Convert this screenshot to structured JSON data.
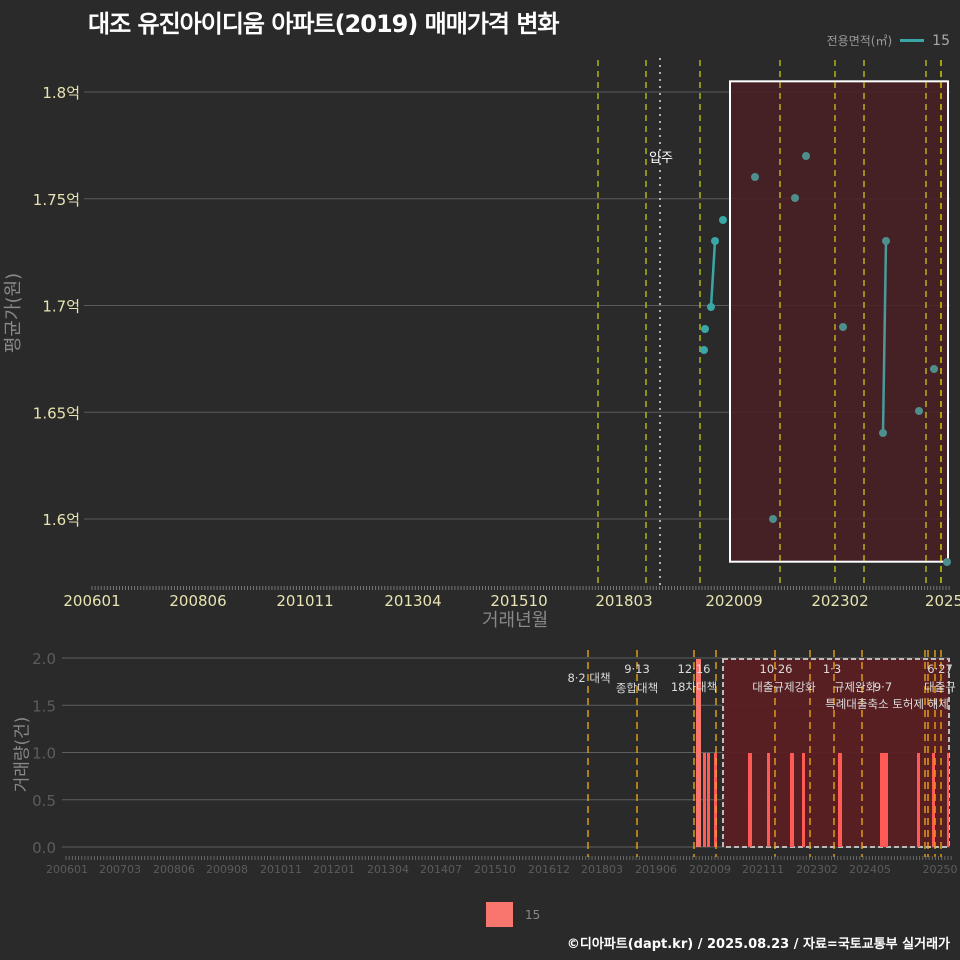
{
  "title": "대조 유진아이디움 아파트(2019) 매매가격 변화",
  "legend": {
    "title": "전용면적(㎡)",
    "series_label": "15",
    "line_color": "#3aa6a6",
    "bar_color": "#f8766d"
  },
  "caption": "©디아파트(dapt.kr) / 2025.08.23 / 자료=국토교통부 실거래가",
  "chart_data": [
    {
      "type": "line",
      "title": "대조 유진아이디움 아파트(2019) 매매가격 변화",
      "xlabel": "거래년월",
      "ylabel": "평균가(원)",
      "x_tick_labels": [
        "200601",
        "200806",
        "201011",
        "201304",
        "201510",
        "201803",
        "202009",
        "202302",
        "2025"
      ],
      "y_tick_labels": [
        "1.6억",
        "1.65억",
        "1.7억",
        "1.75억",
        "1.8억"
      ],
      "ylim": [
        1.57,
        1.815
      ],
      "grid": true,
      "legend_position": "top-right",
      "series": [
        {
          "name": "15",
          "points": [
            {
              "x": "201906",
              "y": 1.68
            },
            {
              "x": "201906",
              "y": 1.69
            },
            {
              "x": "201908",
              "y": 1.7
            },
            {
              "x": "201909",
              "y": 1.73
            },
            {
              "x": "201911",
              "y": 1.74
            },
            {
              "x": "202102",
              "y": 1.76
            },
            {
              "x": "202106",
              "y": 1.6
            },
            {
              "x": "202112",
              "y": 1.75
            },
            {
              "x": "202203",
              "y": 1.77
            },
            {
              "x": "202305",
              "y": 1.69
            },
            {
              "x": "202311",
              "y": 1.64
            },
            {
              "x": "202312",
              "y": 1.73
            },
            {
              "x": "202409",
              "y": 1.65
            },
            {
              "x": "202501",
              "y": 1.67
            },
            {
              "x": "202504",
              "y": 1.58
            }
          ]
        }
      ],
      "annotations": [
        {
          "type": "vline",
          "label": "입주",
          "x": "201812",
          "style": "dotted-white"
        },
        {
          "type": "vlines",
          "x": [
            "201708",
            "201809",
            "201912",
            "202110",
            "202301",
            "202309",
            "202409",
            "202506"
          ],
          "style": "dashed-yellow"
        },
        {
          "type": "rect",
          "x_range": [
            "202010",
            "202507"
          ],
          "y_range": [
            1.58,
            1.805
          ],
          "fill": "#4a1f24"
        }
      ]
    },
    {
      "type": "bar",
      "xlabel": "",
      "ylabel": "거래량(건)",
      "x_tick_labels": [
        "200601",
        "200703",
        "200806",
        "200908",
        "201011",
        "201201",
        "201304",
        "201407",
        "201510",
        "201612",
        "201803",
        "201906",
        "202009",
        "202111",
        "202302",
        "202405",
        "20250"
      ],
      "y_tick_labels": [
        "0.0",
        "0.5",
        "1.0",
        "1.5",
        "2.0"
      ],
      "ylim": [
        0,
        2.0
      ],
      "series": [
        {
          "name": "15",
          "bars": [
            {
              "x": "201912",
              "y": 2
            },
            {
              "x": "202002",
              "y": 1
            },
            {
              "x": "202003",
              "y": 1
            },
            {
              "x": "202005",
              "y": 1
            },
            {
              "x": "202102",
              "y": 1
            },
            {
              "x": "202107",
              "y": 1
            },
            {
              "x": "202112",
              "y": 1
            },
            {
              "x": "202203",
              "y": 1
            },
            {
              "x": "202305",
              "y": 1
            },
            {
              "x": "202311",
              "y": 1
            },
            {
              "x": "202312",
              "y": 1
            },
            {
              "x": "202409",
              "y": 1
            },
            {
              "x": "202501",
              "y": 1
            },
            {
              "x": "202504",
              "y": 1
            }
          ]
        }
      ],
      "policy_annotations": [
        {
          "date": "8·2 대책",
          "label": "8·2 대책"
        },
        {
          "date": "9·13",
          "label": "종합대책"
        },
        {
          "date": "12·16",
          "label": "18차대책"
        },
        {
          "date": "10·26",
          "label": "대출규제강화"
        },
        {
          "date": "1·3",
          "label": "규제완화"
        },
        {
          "date": "9·7",
          "label": "특례대출축소"
        },
        {
          "date": "",
          "label": "토허제 해제"
        },
        {
          "date": "6·27",
          "label": "대출규제"
        }
      ]
    }
  ],
  "top_chart": {
    "y_axis_title": "평균가(원)",
    "x_axis_title": "거래년월",
    "annotation_movein": "입주"
  },
  "bottom_chart": {
    "y_axis_title": "거래량(건)"
  }
}
